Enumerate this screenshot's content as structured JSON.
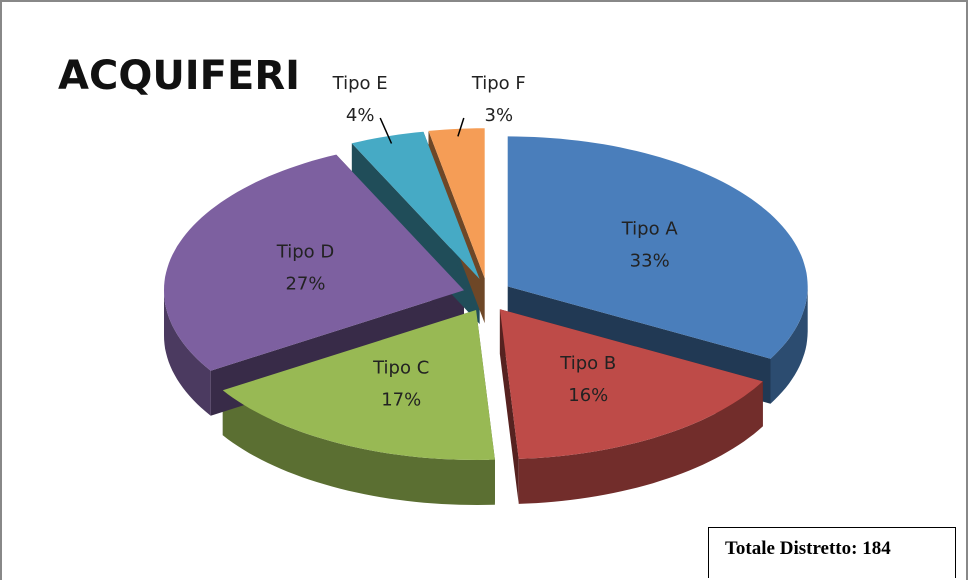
{
  "chart_data": {
    "type": "pie",
    "title": "ACQUIFERI",
    "categories": [
      "Tipo A",
      "Tipo B",
      "Tipo C",
      "Tipo D",
      "Tipo E",
      "Tipo F"
    ],
    "values": [
      33,
      16,
      17,
      27,
      4,
      3
    ],
    "value_labels": [
      "33%",
      "16%",
      "17%",
      "27%",
      "4%",
      "3%"
    ],
    "colors": [
      "#4a7ebb",
      "#be4b48",
      "#98b954",
      "#7d60a0",
      "#46aac5",
      "#f59d56"
    ],
    "annotation": "Totale Distretto: 184"
  }
}
